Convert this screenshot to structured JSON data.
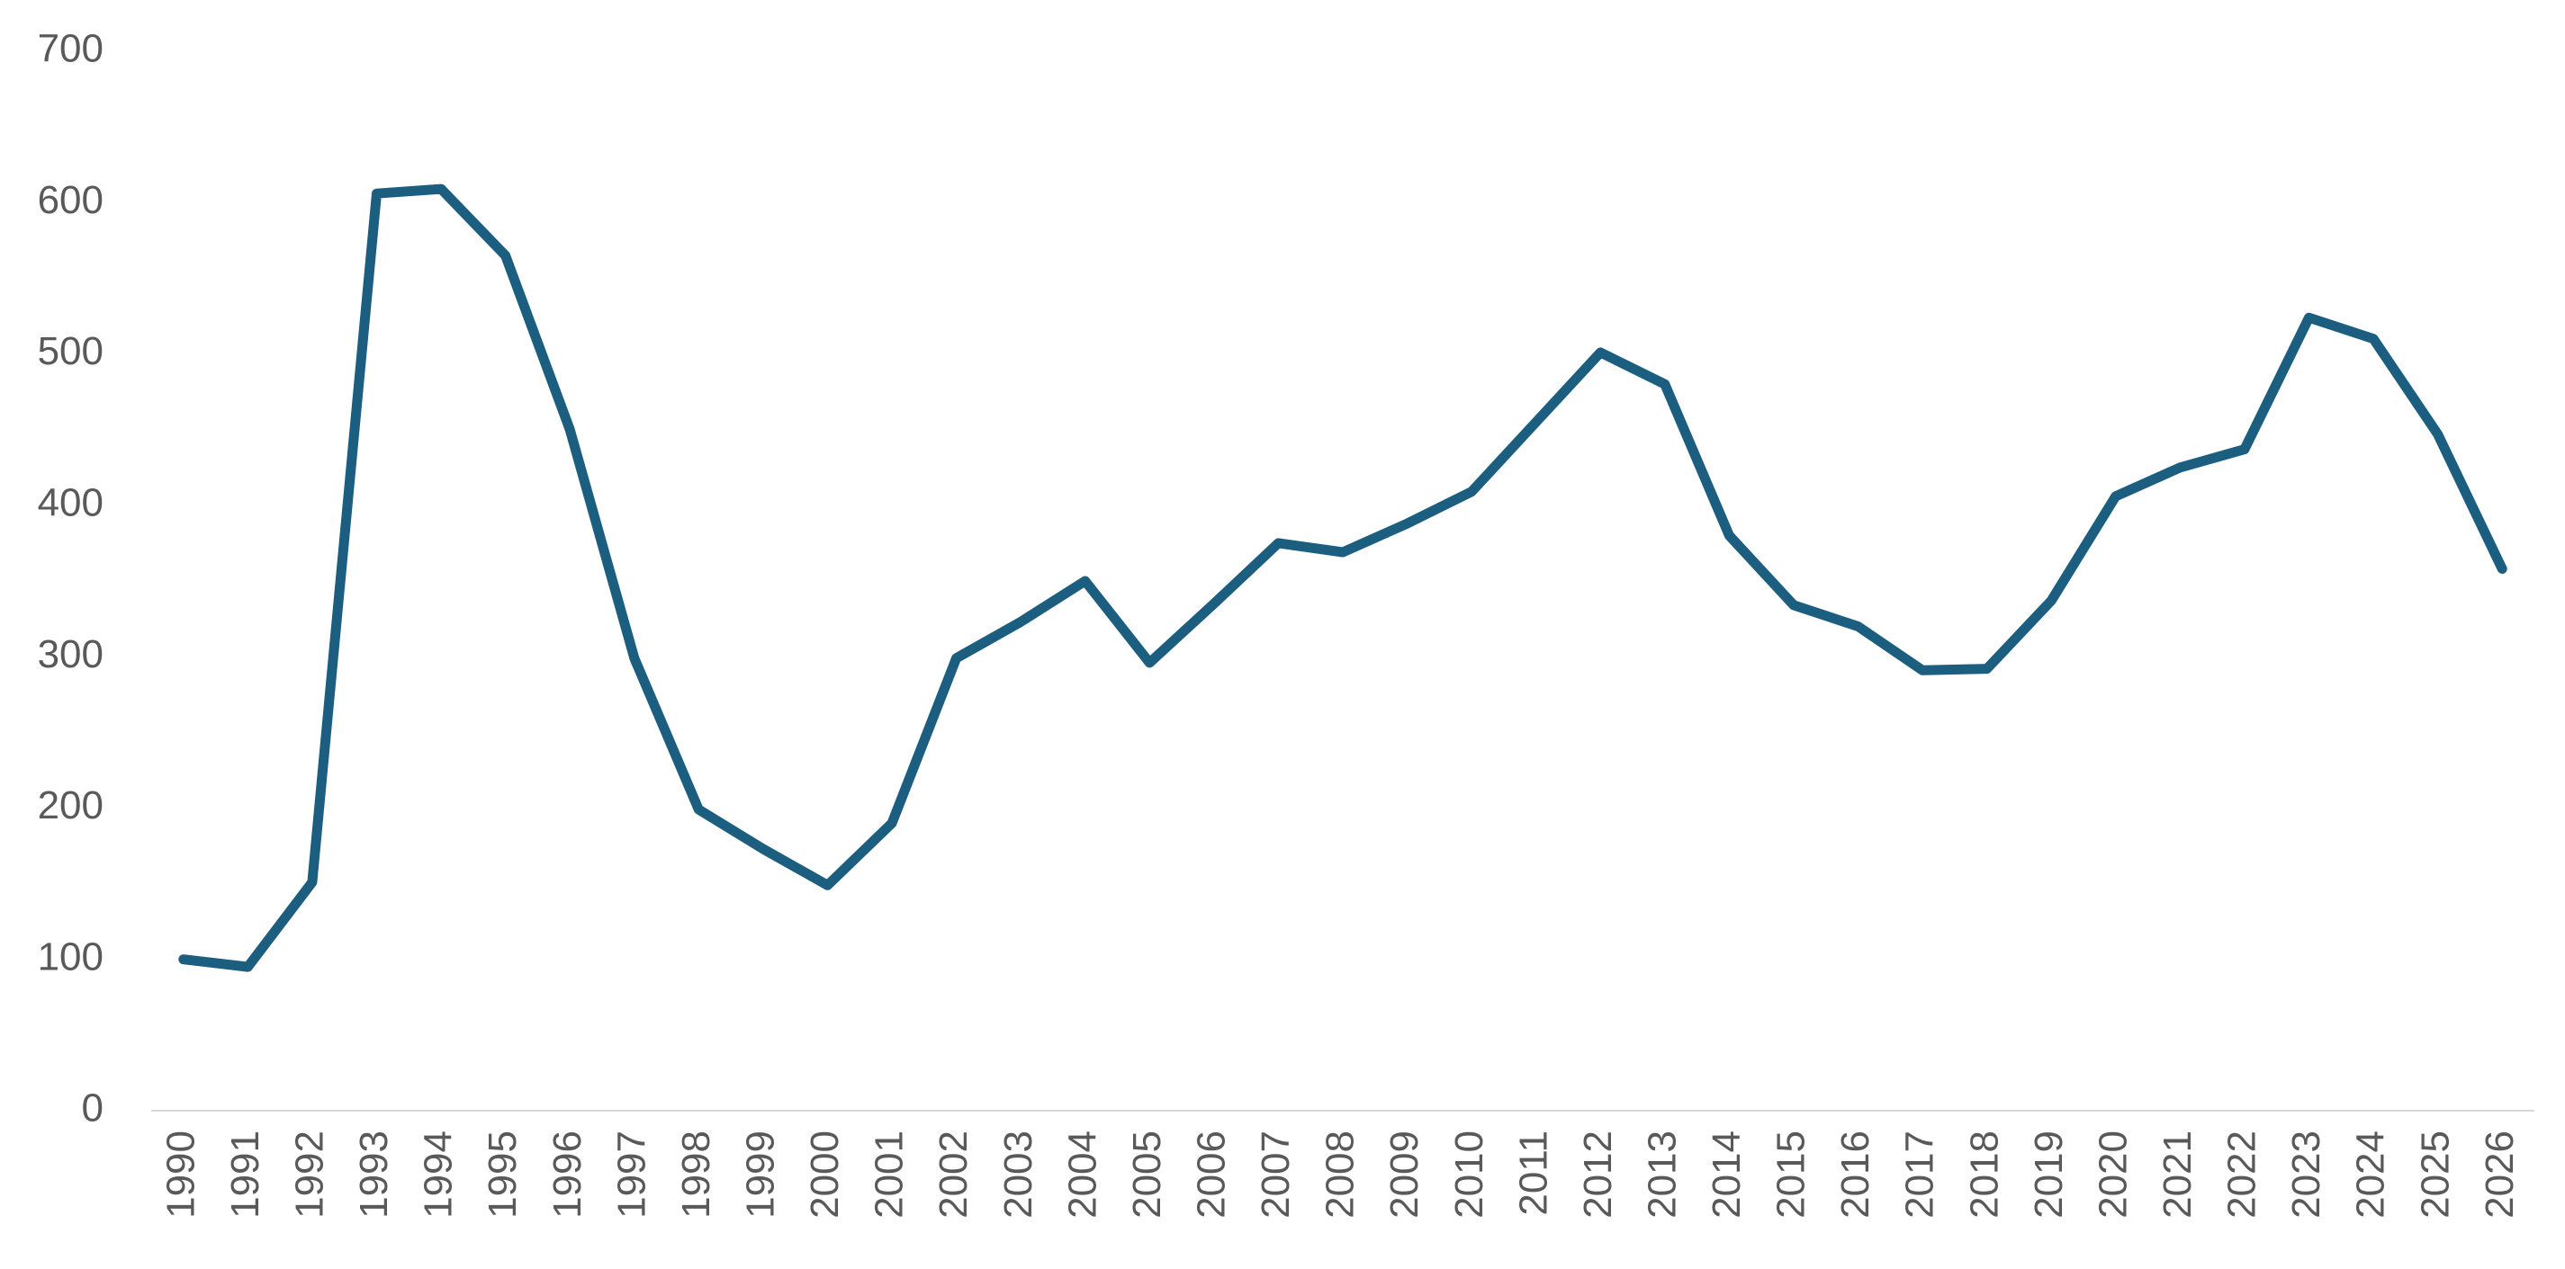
{
  "chart_data": {
    "type": "line",
    "categories": [
      "1990",
      "1991",
      "1992",
      "1993",
      "1994",
      "1995",
      "1996",
      "1997",
      "1998",
      "1999",
      "2000",
      "2001",
      "2002",
      "2003",
      "2004",
      "2005",
      "2006",
      "2007",
      "2008",
      "2009",
      "2010",
      "2011",
      "2012",
      "2013",
      "2014",
      "2015",
      "2016",
      "2017",
      "2018",
      "2019",
      "2020",
      "2021",
      "2022",
      "2023",
      "2024",
      "2025",
      "2026"
    ],
    "values": [
      100,
      95,
      151,
      606,
      609,
      565,
      450,
      299,
      199,
      173,
      149,
      190,
      299,
      323,
      350,
      296,
      335,
      375,
      369,
      388,
      409,
      455,
      501,
      480,
      380,
      334,
      320,
      291,
      292,
      337,
      406,
      425,
      437,
      524,
      510,
      447,
      358
    ],
    "color": "#1b5e80",
    "ylim": [
      0,
      700
    ],
    "yticks": [
      0,
      100,
      200,
      300,
      400,
      500,
      600,
      700
    ],
    "grid": false
  }
}
